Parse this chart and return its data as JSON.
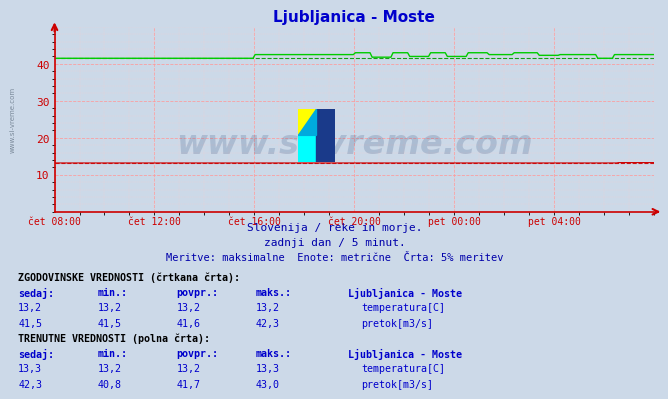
{
  "title": "Ljubljanica - Moste",
  "title_color": "#0000cc",
  "bg_color": "#ccd9e8",
  "grid_color_major": "#ff9999",
  "grid_color_minor": "#ffcccc",
  "axis_color": "#cc0000",
  "watermark_text": "www.si-vreme.com",
  "watermark_color": "#1a3a6e",
  "watermark_alpha": 0.18,
  "subtitle1": "Slovenija / reke in morje.",
  "subtitle2": "zadnji dan / 5 minut.",
  "subtitle3": "Meritve: maksimalne  Enote: metrične  Črta: 5% meritev",
  "subtitle_color": "#0000aa",
  "xlabels": [
    "čet 08:00",
    "čet 12:00",
    "čet 16:00",
    "čet 20:00",
    "pet 00:00",
    "pet 04:00"
  ],
  "xtick_positions": [
    0.0,
    0.1667,
    0.3333,
    0.5,
    0.6667,
    0.8333
  ],
  "ylim": [
    0,
    50
  ],
  "yticks": [
    10,
    20,
    30,
    40
  ],
  "temp_color": "#cc0000",
  "flow_color": "#00cc00",
  "flow_dashed_color": "#009900",
  "temp_dashed_color": "#cc0000",
  "table_text_color": "#0000cc",
  "hist_section": "ZGODOVINSKE VREDNOSTI (črtkana črta):",
  "curr_section": "TRENUTNE VREDNOSTI (polna črta):",
  "col_headers": [
    "sedaj:",
    "min.:",
    "povpr.:",
    "maks.:",
    "Ljubljanica - Moste"
  ],
  "hist_temp": [
    13.2,
    13.2,
    13.2,
    13.2
  ],
  "hist_flow": [
    41.5,
    41.5,
    41.6,
    42.3
  ],
  "curr_temp": [
    13.3,
    13.2,
    13.2,
    13.3
  ],
  "curr_flow": [
    42.3,
    40.8,
    41.7,
    43.0
  ],
  "temp_label": "temperatura[C]",
  "flow_label": "pretok[m3/s]"
}
